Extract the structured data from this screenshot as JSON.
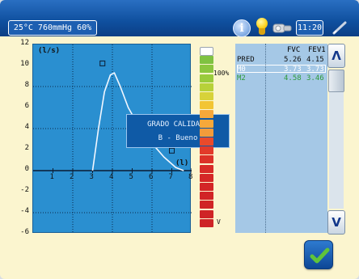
{
  "header": {
    "environment": "25°C 760mmHg 60%",
    "time": "11:20",
    "icons": [
      "info-icon",
      "bulb-icon",
      "pump-icon",
      "pen-icon"
    ],
    "info_glyph": "i"
  },
  "graph": {
    "y_unit": "(l/s)",
    "x_unit": "(l)",
    "y_ticks": [
      "12",
      "10",
      "8",
      "6",
      "4",
      "2",
      "0",
      "-2",
      "-4",
      "-6"
    ],
    "x_ticks": [
      "1",
      "2",
      "3",
      "4",
      "5",
      "6",
      "7",
      "8"
    ],
    "xlim": [
      0,
      8
    ],
    "ylim": [
      -6,
      12
    ],
    "curve": [
      [
        3.0,
        0
      ],
      [
        3.3,
        4.0
      ],
      [
        3.6,
        7.5
      ],
      [
        3.9,
        9.1
      ],
      [
        4.1,
        9.3
      ],
      [
        4.4,
        8.0
      ],
      [
        4.8,
        6.0
      ],
      [
        5.4,
        4.0
      ],
      [
        6.0,
        2.6
      ],
      [
        6.6,
        1.3
      ],
      [
        7.2,
        0.3
      ],
      [
        7.6,
        0
      ]
    ],
    "markers": [
      [
        3.5,
        10.2
      ],
      [
        7.0,
        1.9
      ]
    ],
    "grid_x": [
      2,
      4,
      6
    ],
    "grid_y": [
      8,
      4,
      0,
      -4
    ]
  },
  "quality_popup": {
    "title": "GRADO CALIDAD:",
    "value": "B - Bueno"
  },
  "quality_bar": {
    "top_label": "100%",
    "bottom_label": "V",
    "level": 0.7,
    "colors": [
      "#f3f3f3",
      "#7fc241",
      "#8cc63f",
      "#9acb3c",
      "#b7d13a",
      "#d7d23a",
      "#f2c534",
      "#f6a83a",
      "#f6a83a",
      "#f39b3a",
      "#e94a2b",
      "#e23a2a",
      "#dc3128",
      "#d82b27",
      "#d52726",
      "#d32526",
      "#d12426",
      "#d02426",
      "#cf2426",
      "#ce2426"
    ]
  },
  "results": {
    "headers": [
      "",
      "FVC",
      "FEV1"
    ],
    "rows": [
      {
        "label": "PRED",
        "fvc": "5.26",
        "fev1": "4.15",
        "color": "#111111"
      },
      {
        "label": "M0",
        "fvc": "3.73",
        "fev1": "3.73",
        "color": "#ffffff"
      },
      {
        "label": "M2",
        "fvc": "4.58",
        "fev1": "3.46",
        "color": "#2e9a3a"
      }
    ]
  },
  "scroll": {
    "up_glyph": "Λ",
    "down_glyph": "V"
  },
  "colors": {
    "accent": "#0f4f9e",
    "graph_bg": "#2a8fd0",
    "ok_check": "#5fc43a"
  }
}
